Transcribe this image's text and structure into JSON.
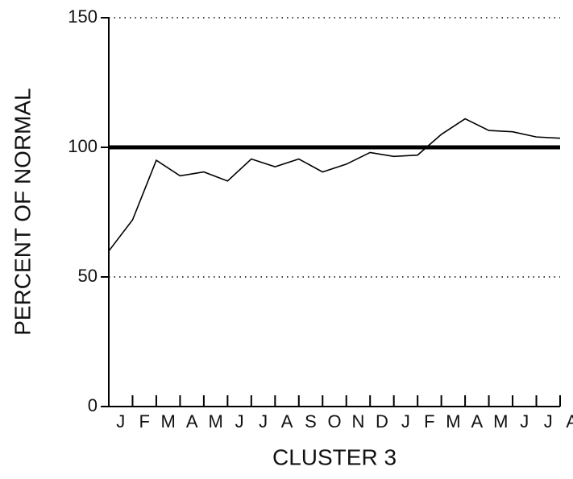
{
  "chart_data": {
    "type": "line",
    "x_label": "CLUSTER 3",
    "y_label": "PERCENT OF NORMAL",
    "categories": [
      "J",
      "F",
      "M",
      "A",
      "M",
      "J",
      "J",
      "A",
      "S",
      "O",
      "N",
      "D",
      "J",
      "F",
      "M",
      "A",
      "M",
      "J",
      "J",
      "A"
    ],
    "series": [
      {
        "color": "#000000",
        "values": [
          60,
          72,
          95,
          89,
          90.5,
          87,
          95.5,
          92.5,
          95.5,
          90.5,
          93.5,
          98,
          96.5,
          97,
          105,
          111,
          106.5,
          106,
          104,
          103.5
        ]
      }
    ],
    "reference_line": {
      "value": 100,
      "color": "#000000"
    },
    "ylim": [
      0,
      150
    ],
    "yticks": [
      0,
      50,
      100,
      150
    ],
    "grid": true
  }
}
